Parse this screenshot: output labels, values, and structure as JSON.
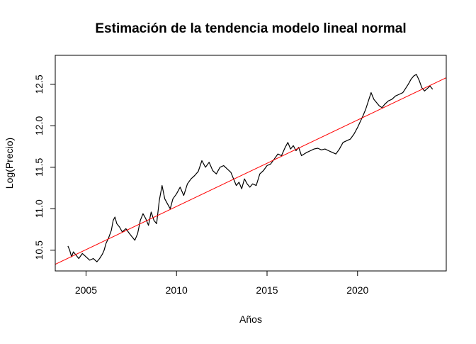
{
  "chart_data": {
    "type": "line",
    "title": "Estimación de la tendencia modelo lineal normal",
    "xlabel": "Años",
    "ylabel": "Log(Precio)",
    "xlim": [
      2003.3,
      2024.9
    ],
    "ylim": [
      10.25,
      12.85
    ],
    "xticks": [
      2005,
      2010,
      2015,
      2020
    ],
    "xtick_labels": [
      "2005",
      "2010",
      "2015",
      "2020"
    ],
    "yticks": [
      10.5,
      11.0,
      11.5,
      12.0,
      12.5
    ],
    "ytick_labels": [
      "10.5",
      "11.0",
      "11.5",
      "12.0",
      "12.5"
    ],
    "grid": false,
    "series": [
      {
        "color": "#000000",
        "kind": "line",
        "x": [
          2004.0,
          2004.1,
          2004.2,
          2004.3,
          2004.45,
          2004.6,
          2004.8,
          2005.0,
          2005.2,
          2005.4,
          2005.6,
          2005.75,
          2005.9,
          2006.0,
          2006.1,
          2006.25,
          2006.4,
          2006.5,
          2006.6,
          2006.7,
          2006.85,
          2007.0,
          2007.2,
          2007.4,
          2007.55,
          2007.7,
          2007.85,
          2008.0,
          2008.15,
          2008.3,
          2008.45,
          2008.6,
          2008.75,
          2008.9,
          2009.05,
          2009.2,
          2009.35,
          2009.5,
          2009.65,
          2009.8,
          2010.0,
          2010.2,
          2010.4,
          2010.6,
          2010.8,
          2011.0,
          2011.2,
          2011.4,
          2011.6,
          2011.8,
          2012.0,
          2012.2,
          2012.4,
          2012.6,
          2012.8,
          2013.0,
          2013.15,
          2013.3,
          2013.45,
          2013.6,
          2013.75,
          2013.9,
          2014.05,
          2014.2,
          2014.4,
          2014.6,
          2014.8,
          2015.0,
          2015.2,
          2015.4,
          2015.6,
          2015.8,
          2016.0,
          2016.15,
          2016.3,
          2016.45,
          2016.6,
          2016.75,
          2016.9,
          2017.05,
          2017.2,
          2017.4,
          2017.6,
          2017.8,
          2018.0,
          2018.2,
          2018.4,
          2018.6,
          2018.8,
          2019.0,
          2019.2,
          2019.4,
          2019.6,
          2019.8,
          2020.0,
          2020.15,
          2020.3,
          2020.45,
          2020.6,
          2020.75,
          2020.9,
          2021.05,
          2021.2,
          2021.35,
          2021.5,
          2021.7,
          2021.9,
          2022.1,
          2022.3,
          2022.5,
          2022.65,
          2022.8,
          2022.95,
          2023.1,
          2023.25,
          2023.4,
          2023.55,
          2023.7,
          2023.85,
          2024.0,
          2024.15
        ],
        "y": [
          10.55,
          10.5,
          10.42,
          10.48,
          10.44,
          10.4,
          10.46,
          10.42,
          10.38,
          10.4,
          10.36,
          10.4,
          10.45,
          10.5,
          10.58,
          10.65,
          10.74,
          10.86,
          10.9,
          10.82,
          10.78,
          10.72,
          10.76,
          10.7,
          10.66,
          10.62,
          10.7,
          10.86,
          10.94,
          10.88,
          10.8,
          10.96,
          10.86,
          10.82,
          11.1,
          11.28,
          11.12,
          11.06,
          11.0,
          11.12,
          11.18,
          11.26,
          11.16,
          11.3,
          11.36,
          11.4,
          11.45,
          11.58,
          11.5,
          11.56,
          11.46,
          11.42,
          11.5,
          11.52,
          11.48,
          11.44,
          11.36,
          11.28,
          11.32,
          11.24,
          11.36,
          11.3,
          11.26,
          11.3,
          11.28,
          11.42,
          11.46,
          11.52,
          11.54,
          11.6,
          11.66,
          11.64,
          11.74,
          11.8,
          11.72,
          11.76,
          11.7,
          11.74,
          11.64,
          11.66,
          11.68,
          11.7,
          11.72,
          11.73,
          11.71,
          11.72,
          11.7,
          11.68,
          11.66,
          11.72,
          11.8,
          11.82,
          11.84,
          11.9,
          11.98,
          12.05,
          12.12,
          12.2,
          12.3,
          12.4,
          12.32,
          12.28,
          12.24,
          12.22,
          12.26,
          12.3,
          12.32,
          12.36,
          12.38,
          12.4,
          12.45,
          12.5,
          12.56,
          12.6,
          12.62,
          12.55,
          12.46,
          12.42,
          12.45,
          12.48,
          12.44
        ]
      },
      {
        "color": "#ff0000",
        "kind": "abline",
        "x": [
          2003.3,
          2024.9
        ],
        "y": [
          10.33,
          12.58
        ]
      }
    ]
  }
}
